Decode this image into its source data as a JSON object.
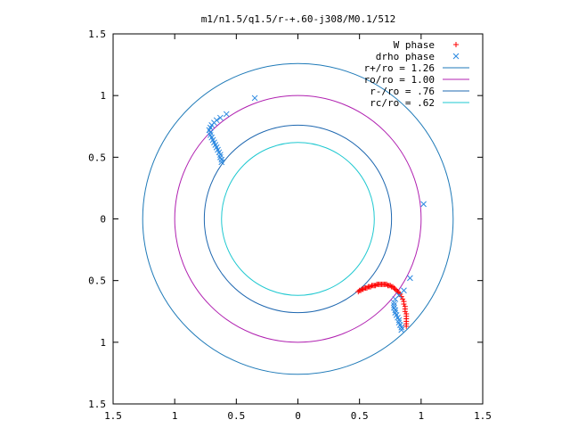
{
  "chart_data": {
    "type": "scatter",
    "title": "m1/n1.5/q1.5/r-+.60-j308/M0.1/512",
    "xlabel": "",
    "ylabel": "",
    "xlim": [
      -1.5,
      1.5
    ],
    "ylim": [
      -1.5,
      1.5
    ],
    "x_ticks": [
      {
        "value": -1.5,
        "label": "1.5"
      },
      {
        "value": -1.0,
        "label": "1"
      },
      {
        "value": -0.5,
        "label": "0.5"
      },
      {
        "value": 0.0,
        "label": "0"
      },
      {
        "value": 0.5,
        "label": "0.5"
      },
      {
        "value": 1.0,
        "label": "1"
      },
      {
        "value": 1.5,
        "label": "1.5"
      }
    ],
    "y_ticks": [
      {
        "value": 1.5,
        "label": "1.5"
      },
      {
        "value": 1.0,
        "label": "1"
      },
      {
        "value": 0.5,
        "label": "0.5"
      },
      {
        "value": 0.0,
        "label": "0"
      },
      {
        "value": -0.5,
        "label": "0.5"
      },
      {
        "value": -1.0,
        "label": "1"
      },
      {
        "value": -1.5,
        "label": "1.5"
      }
    ],
    "grid": false,
    "legend_position": "top-right",
    "circles": [
      {
        "name": "r+/ro = 1.26",
        "radius": 1.26,
        "color": "#1f7ab8"
      },
      {
        "name": "ro/ro = 1.00",
        "radius": 1.0,
        "color": "#b020b0"
      },
      {
        "name": "r-/ro = .76",
        "radius": 0.76,
        "color": "#1f68b0"
      },
      {
        "name": "rc/ro = .62",
        "radius": 0.62,
        "color": "#1ec8d0"
      }
    ],
    "series": [
      {
        "name": "W phase",
        "marker": "+",
        "color": "#ff0000",
        "points": [
          [
            0.49,
            -0.59
          ],
          [
            0.5,
            -0.58
          ],
          [
            0.51,
            -0.58
          ],
          [
            0.52,
            -0.57
          ],
          [
            0.53,
            -0.57
          ],
          [
            0.54,
            -0.56
          ],
          [
            0.55,
            -0.56
          ],
          [
            0.56,
            -0.56
          ],
          [
            0.57,
            -0.55
          ],
          [
            0.58,
            -0.55
          ],
          [
            0.59,
            -0.55
          ],
          [
            0.6,
            -0.54
          ],
          [
            0.61,
            -0.54
          ],
          [
            0.62,
            -0.54
          ],
          [
            0.63,
            -0.54
          ],
          [
            0.64,
            -0.53
          ],
          [
            0.65,
            -0.53
          ],
          [
            0.66,
            -0.53
          ],
          [
            0.67,
            -0.53
          ],
          [
            0.68,
            -0.53
          ],
          [
            0.69,
            -0.53
          ],
          [
            0.7,
            -0.53
          ],
          [
            0.71,
            -0.53
          ],
          [
            0.72,
            -0.53
          ],
          [
            0.73,
            -0.54
          ],
          [
            0.74,
            -0.54
          ],
          [
            0.75,
            -0.54
          ],
          [
            0.76,
            -0.55
          ],
          [
            0.77,
            -0.55
          ],
          [
            0.78,
            -0.56
          ],
          [
            0.79,
            -0.57
          ],
          [
            0.8,
            -0.58
          ],
          [
            0.81,
            -0.59
          ],
          [
            0.82,
            -0.6
          ],
          [
            0.83,
            -0.61
          ],
          [
            0.84,
            -0.63
          ],
          [
            0.85,
            -0.65
          ],
          [
            0.86,
            -0.67
          ],
          [
            0.86,
            -0.69
          ],
          [
            0.87,
            -0.71
          ],
          [
            0.87,
            -0.73
          ],
          [
            0.87,
            -0.75
          ],
          [
            0.88,
            -0.77
          ],
          [
            0.88,
            -0.79
          ],
          [
            0.88,
            -0.81
          ],
          [
            0.88,
            -0.83
          ],
          [
            0.88,
            -0.85
          ],
          [
            0.88,
            -0.87
          ]
        ]
      },
      {
        "name": "drho phase",
        "marker": "x",
        "color": "#2a88e0",
        "points": [
          [
            -0.35,
            0.98
          ],
          [
            -0.58,
            0.85
          ],
          [
            -0.63,
            0.82
          ],
          [
            -0.66,
            0.8
          ],
          [
            -0.68,
            0.78
          ],
          [
            -0.7,
            0.76
          ],
          [
            -0.71,
            0.74
          ],
          [
            -0.72,
            0.72
          ],
          [
            -0.71,
            0.7
          ],
          [
            -0.71,
            0.68
          ],
          [
            -0.7,
            0.66
          ],
          [
            -0.69,
            0.64
          ],
          [
            -0.68,
            0.62
          ],
          [
            -0.67,
            0.6
          ],
          [
            -0.66,
            0.58
          ],
          [
            -0.65,
            0.56
          ],
          [
            -0.64,
            0.54
          ],
          [
            -0.63,
            0.52
          ],
          [
            -0.63,
            0.5
          ],
          [
            -0.62,
            0.48
          ],
          [
            -0.62,
            0.46
          ],
          [
            1.02,
            0.12
          ],
          [
            0.91,
            -0.48
          ],
          [
            0.86,
            -0.58
          ],
          [
            0.82,
            -0.62
          ],
          [
            0.79,
            -0.65
          ],
          [
            0.78,
            -0.68
          ],
          [
            0.78,
            -0.7
          ],
          [
            0.78,
            -0.72
          ],
          [
            0.79,
            -0.74
          ],
          [
            0.79,
            -0.76
          ],
          [
            0.8,
            -0.78
          ],
          [
            0.81,
            -0.8
          ],
          [
            0.82,
            -0.82
          ],
          [
            0.82,
            -0.84
          ],
          [
            0.83,
            -0.86
          ],
          [
            0.84,
            -0.88
          ],
          [
            0.84,
            -0.9
          ]
        ]
      }
    ]
  }
}
